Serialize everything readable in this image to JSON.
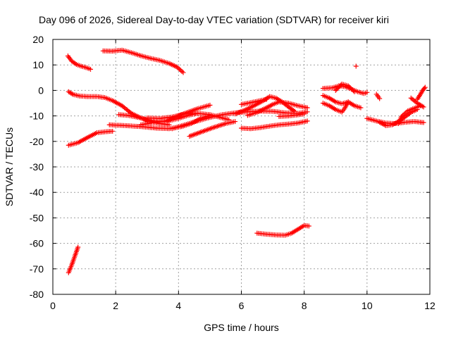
{
  "chart_data": {
    "type": "scatter",
    "title": "Day 096 of 2026, Sidereal Day-to-day VTEC variation (SDTVAR) for receiver kiri",
    "xlabel": "GPS time / hours",
    "ylabel": "SDTVAR / TECUs",
    "xlim": [
      0,
      12
    ],
    "ylim": [
      -80,
      20
    ],
    "xticks": [
      "0",
      "2",
      "4",
      "6",
      "8",
      "10",
      "12"
    ],
    "yticks": [
      "20",
      "10",
      "0",
      "-10",
      "-20",
      "-30",
      "-40",
      "-50",
      "-60",
      "-70",
      "-80"
    ],
    "grid": true,
    "marker": "+",
    "color": "#ff0000",
    "tracks": [
      [
        [
          0.48,
          13.5
        ],
        [
          0.6,
          11.5
        ],
        [
          0.75,
          10.2
        ],
        [
          0.9,
          9.5
        ],
        [
          1.05,
          9.0
        ],
        [
          1.2,
          8.3
        ]
      ],
      [
        [
          1.6,
          15.5
        ],
        [
          1.9,
          15.4
        ],
        [
          2.2,
          15.8
        ],
        [
          2.5,
          14.8
        ],
        [
          2.8,
          13.6
        ],
        [
          3.1,
          12.6
        ],
        [
          3.4,
          11.8
        ],
        [
          3.7,
          10.6
        ],
        [
          3.95,
          9.2
        ],
        [
          4.15,
          7.0
        ]
      ],
      [
        [
          0.5,
          -0.5
        ],
        [
          0.65,
          -1.6
        ],
        [
          0.85,
          -2.2
        ],
        [
          1.1,
          -2.4
        ],
        [
          1.4,
          -2.4
        ],
        [
          1.65,
          -2.8
        ],
        [
          1.9,
          -4.0
        ],
        [
          2.2,
          -6.0
        ],
        [
          2.5,
          -9.0
        ],
        [
          2.8,
          -10.8
        ],
        [
          3.1,
          -12.2
        ],
        [
          3.4,
          -13.0
        ],
        [
          3.7,
          -13.5
        ]
      ],
      [
        [
          0.5,
          -21.5
        ],
        [
          0.8,
          -20.5
        ],
        [
          1.1,
          -18.5
        ],
        [
          1.4,
          -16.6
        ],
        [
          1.7,
          -16.2
        ],
        [
          1.9,
          -16.0
        ]
      ],
      [
        [
          1.8,
          -13.5
        ],
        [
          2.3,
          -13.8
        ],
        [
          2.8,
          -14.2
        ],
        [
          3.3,
          -14.8
        ],
        [
          3.7,
          -15.0
        ],
        [
          4.1,
          -14.2
        ],
        [
          4.4,
          -13.0
        ],
        [
          4.7,
          -11.0
        ],
        [
          5.0,
          -9.8
        ]
      ],
      [
        [
          2.1,
          -9.5
        ],
        [
          2.4,
          -9.8
        ],
        [
          2.8,
          -10.8
        ],
        [
          3.2,
          -12.0
        ],
        [
          3.6,
          -12.2
        ],
        [
          4.0,
          -11.0
        ],
        [
          4.3,
          -9.8
        ],
        [
          4.6,
          -9.0
        ]
      ],
      [
        [
          2.8,
          -13.5
        ],
        [
          3.2,
          -12.6
        ],
        [
          3.6,
          -12.0
        ],
        [
          3.9,
          -10.5
        ],
        [
          4.2,
          -9.0
        ],
        [
          4.6,
          -7.2
        ],
        [
          5.0,
          -5.8
        ]
      ],
      [
        [
          3.0,
          -10.8
        ],
        [
          3.4,
          -11.0
        ],
        [
          3.8,
          -10.4
        ],
        [
          4.2,
          -9.2
        ],
        [
          4.6,
          -9.0
        ],
        [
          5.0,
          -9.5
        ],
        [
          5.3,
          -10.5
        ],
        [
          5.6,
          -11.5
        ]
      ],
      [
        [
          4.35,
          -18.0
        ],
        [
          4.7,
          -16.4
        ],
        [
          5.1,
          -14.6
        ],
        [
          5.5,
          -13.0
        ],
        [
          5.8,
          -12.2
        ]
      ],
      [
        [
          3.8,
          -15.0
        ],
        [
          4.2,
          -13.5
        ],
        [
          4.6,
          -12.0
        ],
        [
          5.0,
          -10.6
        ],
        [
          5.4,
          -9.5
        ],
        [
          5.8,
          -8.8
        ],
        [
          6.2,
          -8.4
        ],
        [
          6.6,
          -8.1
        ],
        [
          7.0,
          -8.2
        ],
        [
          7.4,
          -8.8
        ],
        [
          7.8,
          -9.0
        ],
        [
          8.1,
          -8.4
        ]
      ],
      [
        [
          6.0,
          -14.8
        ],
        [
          6.3,
          -15.0
        ],
        [
          6.6,
          -14.6
        ],
        [
          6.9,
          -14.0
        ],
        [
          7.2,
          -13.5
        ],
        [
          7.5,
          -13.2
        ],
        [
          7.8,
          -12.8
        ],
        [
          8.1,
          -12.0
        ]
      ],
      [
        [
          5.8,
          -9.2
        ],
        [
          6.1,
          -7.8
        ],
        [
          6.4,
          -6.0
        ],
        [
          6.7,
          -4.0
        ],
        [
          6.9,
          -2.4
        ],
        [
          7.1,
          -3.0
        ],
        [
          7.3,
          -4.5
        ],
        [
          7.5,
          -6.5
        ],
        [
          7.7,
          -8.2
        ]
      ],
      [
        [
          6.2,
          -9.8
        ],
        [
          6.5,
          -8.6
        ],
        [
          6.8,
          -6.8
        ],
        [
          7.0,
          -5.5
        ],
        [
          7.2,
          -4.5
        ],
        [
          7.5,
          -5.0
        ],
        [
          7.8,
          -6.0
        ],
        [
          8.1,
          -6.8
        ]
      ],
      [
        [
          6.0,
          -5.5
        ],
        [
          6.3,
          -4.8
        ],
        [
          6.6,
          -4.0
        ],
        [
          6.8,
          -3.5
        ]
      ],
      [
        [
          7.2,
          -10.2
        ],
        [
          7.5,
          -10.0
        ],
        [
          7.8,
          -9.6
        ],
        [
          8.0,
          -9.2
        ]
      ],
      [
        [
          6.5,
          -56.0
        ],
        [
          6.8,
          -56.4
        ],
        [
          7.1,
          -56.7
        ],
        [
          7.4,
          -56.8
        ],
        [
          7.6,
          -56.0
        ],
        [
          7.8,
          -54.5
        ],
        [
          8.0,
          -53.0
        ],
        [
          8.15,
          -53.2
        ]
      ],
      [
        [
          0.5,
          -71.5
        ],
        [
          0.6,
          -68.5
        ],
        [
          0.7,
          -65.0
        ],
        [
          0.8,
          -61.5
        ]
      ],
      [
        [
          8.6,
          0.8
        ],
        [
          8.9,
          1.0
        ],
        [
          9.1,
          1.8
        ],
        [
          9.3,
          1.5
        ],
        [
          9.5,
          0.5
        ],
        [
          9.7,
          -0.5
        ],
        [
          9.9,
          -1.2
        ],
        [
          10.0,
          -0.8
        ]
      ],
      [
        [
          8.6,
          -2.0
        ],
        [
          8.8,
          -3.0
        ],
        [
          9.0,
          -4.5
        ],
        [
          9.2,
          -5.2
        ],
        [
          9.4,
          -4.5
        ],
        [
          9.6,
          -6.0
        ],
        [
          9.8,
          -6.8
        ]
      ],
      [
        [
          8.6,
          -5.0
        ],
        [
          8.8,
          -6.0
        ],
        [
          9.0,
          -7.5
        ],
        [
          9.2,
          -8.5
        ],
        [
          9.3,
          -6.8
        ],
        [
          9.4,
          -4.5
        ]
      ],
      [
        [
          9.0,
          0.0
        ],
        [
          9.2,
          2.5
        ],
        [
          9.4,
          1.8
        ],
        [
          9.6,
          -0.5
        ]
      ],
      [
        [
          9.65,
          9.5
        ]
      ],
      [
        [
          10.3,
          -1.5
        ],
        [
          10.4,
          -3.2
        ]
      ],
      [
        [
          10.0,
          -11.0
        ],
        [
          10.3,
          -12.0
        ],
        [
          10.6,
          -12.8
        ],
        [
          10.9,
          -13.0
        ],
        [
          11.2,
          -12.5
        ],
        [
          11.5,
          -12.2
        ],
        [
          11.8,
          -12.6
        ]
      ],
      [
        [
          10.4,
          -12.5
        ],
        [
          10.6,
          -13.8
        ],
        [
          10.8,
          -13.5
        ],
        [
          11.0,
          -12.2
        ],
        [
          11.2,
          -10.5
        ],
        [
          11.4,
          -8.6
        ],
        [
          11.6,
          -7.5
        ]
      ],
      [
        [
          11.0,
          -13.0
        ],
        [
          11.1,
          -10.2
        ],
        [
          11.3,
          -8.0
        ],
        [
          11.5,
          -7.0
        ],
        [
          11.7,
          -6.0
        ]
      ],
      [
        [
          11.4,
          -3.0
        ],
        [
          11.6,
          -5.0
        ],
        [
          11.8,
          -6.5
        ]
      ],
      [
        [
          11.6,
          -3.5
        ],
        [
          11.7,
          -1.5
        ],
        [
          11.8,
          0.5
        ],
        [
          11.85,
          1.2
        ]
      ]
    ]
  }
}
